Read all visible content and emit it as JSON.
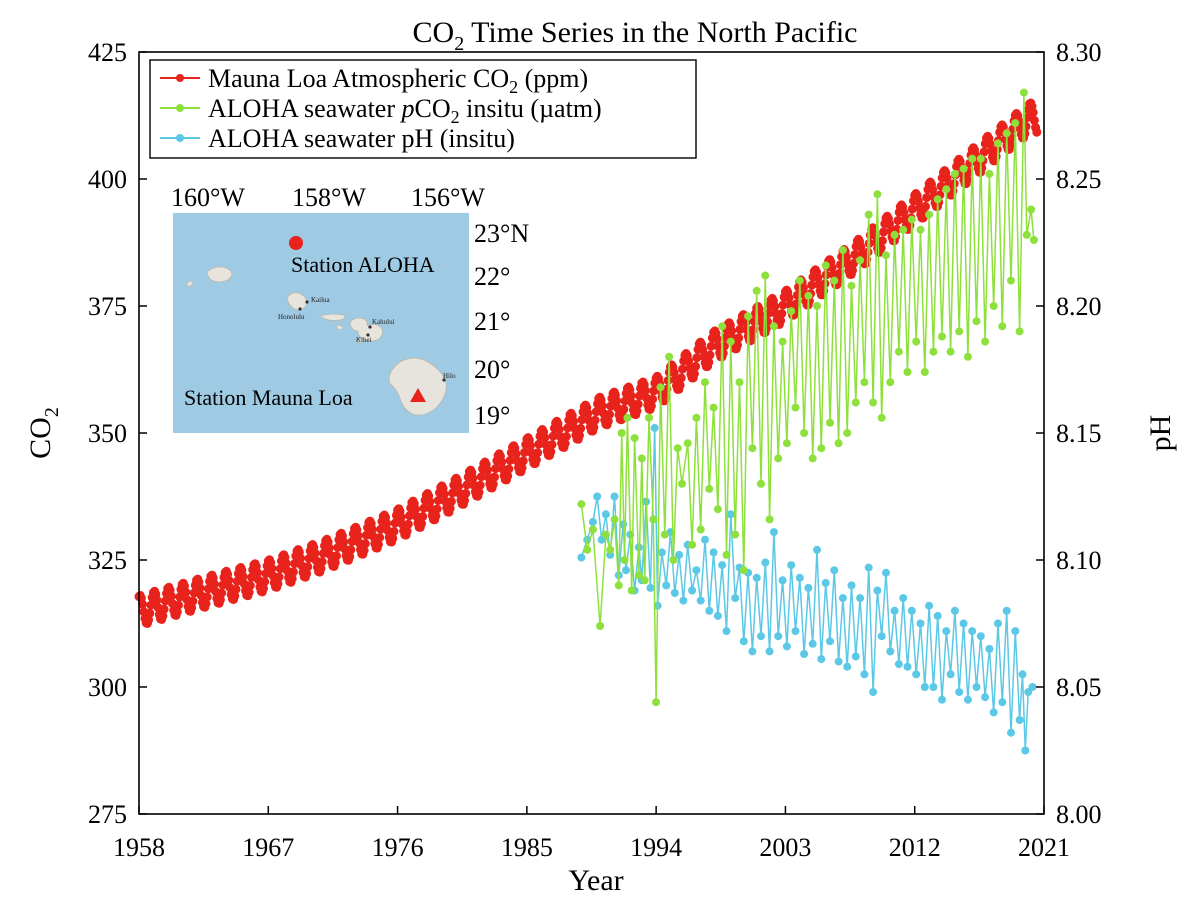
{
  "chart_data": {
    "type": "line",
    "title": {
      "pre": "CO",
      "sub": "2",
      "post": " Time Series in the North Pacific"
    },
    "xlabel": "Year",
    "ylabel_left": {
      "pre": "CO",
      "sub": "2"
    },
    "ylabel_right": "pH",
    "xlim": [
      1958,
      2021
    ],
    "ylim_left": [
      275,
      425
    ],
    "ylim_right": [
      8.0,
      8.3
    ],
    "x_ticks": [
      1958,
      1967,
      1976,
      1985,
      1994,
      2003,
      2012,
      2021
    ],
    "y_ticks_left": [
      275,
      300,
      325,
      350,
      375,
      400,
      425
    ],
    "y_ticks_right": [
      "8.00",
      "8.05",
      "8.10",
      "8.15",
      "8.20",
      "8.25",
      "8.30"
    ],
    "legend_position": "top-left",
    "series": [
      {
        "key": "mauna_loa",
        "legend": {
          "pre": "Mauna Loa Atmospheric CO",
          "sub": "2",
          "post": " (ppm)"
        },
        "color": "#e8231c",
        "axis": "left",
        "trend": [
          [
            1958,
            315
          ],
          [
            1963,
            319
          ],
          [
            1967,
            322
          ],
          [
            1971,
            326
          ],
          [
            1976,
            332
          ],
          [
            1980,
            338
          ],
          [
            1985,
            346
          ],
          [
            1990,
            354
          ],
          [
            1994,
            358
          ],
          [
            1998,
            367
          ],
          [
            2003,
            375
          ],
          [
            2008,
            385
          ],
          [
            2012,
            394
          ],
          [
            2016,
            403
          ],
          [
            2020,
            412
          ]
        ],
        "seasonal_amplitude": 3
      },
      {
        "key": "aloha_pco2",
        "legend": {
          "pre": "ALOHA seawater ",
          "ital": "p",
          "mid": "CO",
          "sub": "2",
          "post": " insitu (µatm)"
        },
        "color": "#8ee03c",
        "axis": "left",
        "points": [
          [
            1988.8,
            336
          ],
          [
            1989.2,
            327
          ],
          [
            1989.6,
            331
          ],
          [
            1990.1,
            312
          ],
          [
            1990.5,
            330
          ],
          [
            1990.8,
            327
          ],
          [
            1991.1,
            333
          ],
          [
            1991.4,
            320
          ],
          [
            1991.6,
            350
          ],
          [
            1991.8,
            325
          ],
          [
            1992.0,
            353
          ],
          [
            1992.3,
            319
          ],
          [
            1992.5,
            349
          ],
          [
            1992.8,
            322
          ],
          [
            1993.0,
            345
          ],
          [
            1993.2,
            321
          ],
          [
            1993.5,
            353
          ],
          [
            1993.8,
            333
          ],
          [
            1994.0,
            297
          ],
          [
            1994.3,
            359
          ],
          [
            1994.6,
            330
          ],
          [
            1994.9,
            365
          ],
          [
            1995.2,
            325
          ],
          [
            1995.5,
            347
          ],
          [
            1995.8,
            340
          ],
          [
            1996.2,
            348
          ],
          [
            1996.5,
            328
          ],
          [
            1996.8,
            353
          ],
          [
            1997.1,
            331
          ],
          [
            1997.4,
            360
          ],
          [
            1997.7,
            339
          ],
          [
            1998.0,
            355
          ],
          [
            1998.3,
            335
          ],
          [
            1998.6,
            371
          ],
          [
            1998.9,
            326
          ],
          [
            1999.2,
            368
          ],
          [
            1999.5,
            330
          ],
          [
            1999.8,
            360
          ],
          [
            2000.1,
            323
          ],
          [
            2000.4,
            373
          ],
          [
            2000.7,
            347
          ],
          [
            2001.0,
            378
          ],
          [
            2001.3,
            340
          ],
          [
            2001.6,
            381
          ],
          [
            2001.9,
            333
          ],
          [
            2002.2,
            371
          ],
          [
            2002.5,
            345
          ],
          [
            2002.8,
            368
          ],
          [
            2003.1,
            348
          ],
          [
            2003.4,
            374
          ],
          [
            2003.7,
            355
          ],
          [
            2004.0,
            380
          ],
          [
            2004.3,
            350
          ],
          [
            2004.6,
            377
          ],
          [
            2004.9,
            345
          ],
          [
            2005.2,
            375
          ],
          [
            2005.5,
            347
          ],
          [
            2005.8,
            383
          ],
          [
            2006.1,
            352
          ],
          [
            2006.4,
            380
          ],
          [
            2006.7,
            348
          ],
          [
            2007.0,
            386
          ],
          [
            2007.3,
            350
          ],
          [
            2007.6,
            379
          ],
          [
            2007.9,
            356
          ],
          [
            2008.2,
            384
          ],
          [
            2008.5,
            360
          ],
          [
            2008.8,
            393
          ],
          [
            2009.1,
            356
          ],
          [
            2009.4,
            397
          ],
          [
            2009.7,
            353
          ],
          [
            2010.0,
            385
          ],
          [
            2010.3,
            360
          ],
          [
            2010.6,
            389
          ],
          [
            2010.9,
            366
          ],
          [
            2011.2,
            390
          ],
          [
            2011.5,
            362
          ],
          [
            2011.8,
            392
          ],
          [
            2012.1,
            368
          ],
          [
            2012.4,
            390
          ],
          [
            2012.7,
            362
          ],
          [
            2013.0,
            393
          ],
          [
            2013.3,
            366
          ],
          [
            2013.6,
            396
          ],
          [
            2013.9,
            369
          ],
          [
            2014.2,
            398
          ],
          [
            2014.5,
            366
          ],
          [
            2014.8,
            401
          ],
          [
            2015.1,
            370
          ],
          [
            2015.4,
            402
          ],
          [
            2015.7,
            365
          ],
          [
            2016.0,
            404
          ],
          [
            2016.3,
            372
          ],
          [
            2016.6,
            404
          ],
          [
            2016.9,
            368
          ],
          [
            2017.2,
            401
          ],
          [
            2017.5,
            375
          ],
          [
            2017.8,
            407
          ],
          [
            2018.1,
            371
          ],
          [
            2018.4,
            409
          ],
          [
            2018.7,
            380
          ],
          [
            2019.0,
            411
          ],
          [
            2019.3,
            370
          ],
          [
            2019.6,
            417
          ],
          [
            2019.8,
            389
          ],
          [
            2020.1,
            394
          ],
          [
            2020.3,
            388
          ]
        ]
      },
      {
        "key": "aloha_ph",
        "legend": {
          "pre": "ALOHA seawater pH (insitu)"
        },
        "color": "#5bc8e6",
        "axis": "right",
        "points": [
          [
            1988.8,
            8.101
          ],
          [
            1989.2,
            8.108
          ],
          [
            1989.6,
            8.115
          ],
          [
            1989.9,
            8.125
          ],
          [
            1990.2,
            8.108
          ],
          [
            1990.5,
            8.118
          ],
          [
            1990.8,
            8.102
          ],
          [
            1991.1,
            8.125
          ],
          [
            1991.4,
            8.094
          ],
          [
            1991.7,
            8.114
          ],
          [
            1991.9,
            8.096
          ],
          [
            1992.2,
            8.11
          ],
          [
            1992.5,
            8.088
          ],
          [
            1992.8,
            8.105
          ],
          [
            1993.0,
            8.092
          ],
          [
            1993.3,
            8.123
          ],
          [
            1993.6,
            8.089
          ],
          [
            1993.9,
            8.152
          ],
          [
            1994.1,
            8.082
          ],
          [
            1994.4,
            8.103
          ],
          [
            1994.7,
            8.09
          ],
          [
            1995.0,
            8.111
          ],
          [
            1995.3,
            8.087
          ],
          [
            1995.6,
            8.102
          ],
          [
            1995.9,
            8.084
          ],
          [
            1996.2,
            8.106
          ],
          [
            1996.5,
            8.088
          ],
          [
            1996.8,
            8.096
          ],
          [
            1997.1,
            8.084
          ],
          [
            1997.4,
            8.108
          ],
          [
            1997.7,
            8.08
          ],
          [
            1998.0,
            8.103
          ],
          [
            1998.3,
            8.078
          ],
          [
            1998.6,
            8.098
          ],
          [
            1998.9,
            8.072
          ],
          [
            1999.2,
            8.118
          ],
          [
            1999.5,
            8.085
          ],
          [
            1999.8,
            8.097
          ],
          [
            2000.1,
            8.068
          ],
          [
            2000.4,
            8.095
          ],
          [
            2000.7,
            8.064
          ],
          [
            2001.0,
            8.093
          ],
          [
            2001.3,
            8.07
          ],
          [
            2001.6,
            8.099
          ],
          [
            2001.9,
            8.064
          ],
          [
            2002.2,
            8.111
          ],
          [
            2002.5,
            8.07
          ],
          [
            2002.8,
            8.092
          ],
          [
            2003.1,
            8.066
          ],
          [
            2003.4,
            8.098
          ],
          [
            2003.7,
            8.072
          ],
          [
            2004.0,
            8.093
          ],
          [
            2004.3,
            8.063
          ],
          [
            2004.6,
            8.089
          ],
          [
            2004.9,
            8.067
          ],
          [
            2005.2,
            8.104
          ],
          [
            2005.5,
            8.061
          ],
          [
            2005.8,
            8.091
          ],
          [
            2006.1,
            8.068
          ],
          [
            2006.4,
            8.096
          ],
          [
            2006.7,
            8.06
          ],
          [
            2007.0,
            8.085
          ],
          [
            2007.3,
            8.058
          ],
          [
            2007.6,
            8.09
          ],
          [
            2007.9,
            8.062
          ],
          [
            2008.2,
            8.085
          ],
          [
            2008.5,
            8.055
          ],
          [
            2008.8,
            8.097
          ],
          [
            2009.1,
            8.048
          ],
          [
            2009.4,
            8.088
          ],
          [
            2009.7,
            8.07
          ],
          [
            2010.0,
            8.095
          ],
          [
            2010.3,
            8.064
          ],
          [
            2010.6,
            8.08
          ],
          [
            2010.9,
            8.059
          ],
          [
            2011.2,
            8.085
          ],
          [
            2011.5,
            8.058
          ],
          [
            2011.8,
            8.08
          ],
          [
            2012.1,
            8.055
          ],
          [
            2012.4,
            8.075
          ],
          [
            2012.7,
            8.05
          ],
          [
            2013.0,
            8.082
          ],
          [
            2013.3,
            8.05
          ],
          [
            2013.6,
            8.078
          ],
          [
            2013.9,
            8.045
          ],
          [
            2014.2,
            8.072
          ],
          [
            2014.5,
            8.055
          ],
          [
            2014.8,
            8.08
          ],
          [
            2015.1,
            8.048
          ],
          [
            2015.4,
            8.075
          ],
          [
            2015.7,
            8.045
          ],
          [
            2016.0,
            8.072
          ],
          [
            2016.3,
            8.05
          ],
          [
            2016.6,
            8.07
          ],
          [
            2016.9,
            8.046
          ],
          [
            2017.2,
            8.065
          ],
          [
            2017.5,
            8.04
          ],
          [
            2017.8,
            8.075
          ],
          [
            2018.1,
            8.044
          ],
          [
            2018.4,
            8.08
          ],
          [
            2018.7,
            8.032
          ],
          [
            2019.0,
            8.072
          ],
          [
            2019.3,
            8.037
          ],
          [
            2019.5,
            8.055
          ],
          [
            2019.7,
            8.025
          ],
          [
            2019.9,
            8.048
          ],
          [
            2020.2,
            8.05
          ]
        ]
      }
    ],
    "inset_map": {
      "lon_labels": [
        "160°W",
        "158°W",
        "156°W"
      ],
      "lat_labels": [
        "23°N",
        "22°",
        "21°",
        "20°",
        "19°"
      ],
      "station_aloha": "Station ALOHA",
      "station_mauna_loa": "Station Mauna Loa",
      "towns": [
        "Kailua",
        "Honolulu",
        "Kahului",
        "Kihei",
        "Hilo"
      ],
      "water_color": "#9ecbe3",
      "land_color": "#e6e4dc",
      "marker_color": "#e8231c"
    }
  }
}
